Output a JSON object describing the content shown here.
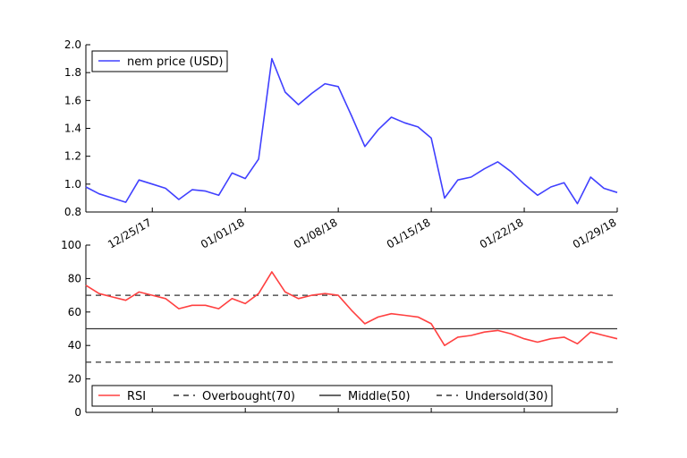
{
  "chart_data": [
    {
      "type": "line",
      "title": "",
      "xlabel": "",
      "ylabel": "",
      "ylim": [
        0.8,
        2.0
      ],
      "yticks": [
        "0.8",
        "1.0",
        "1.2",
        "1.4",
        "1.6",
        "1.8",
        "2.0"
      ],
      "xtick_labels": [
        "12/25/17",
        "01/01/18",
        "01/08/18",
        "01/15/18",
        "01/22/18",
        "01/29/18"
      ],
      "x": [
        "12/20/17",
        "12/21/17",
        "12/22/17",
        "12/23/17",
        "12/24/17",
        "12/25/17",
        "12/26/17",
        "12/27/17",
        "12/28/17",
        "12/29/17",
        "12/30/17",
        "12/31/17",
        "01/01/18",
        "01/02/18",
        "01/03/18",
        "01/04/18",
        "01/05/18",
        "01/06/18",
        "01/07/18",
        "01/08/18",
        "01/09/18",
        "01/10/18",
        "01/11/18",
        "01/12/18",
        "01/13/18",
        "01/14/18",
        "01/15/18",
        "01/16/18",
        "01/17/18",
        "01/18/18",
        "01/19/18",
        "01/20/18",
        "01/21/18",
        "01/22/18",
        "01/23/18",
        "01/24/18",
        "01/25/18",
        "01/26/18",
        "01/27/18",
        "01/28/18",
        "01/29/18"
      ],
      "series": [
        {
          "name": "nem price (USD)",
          "color": "#4040ff",
          "values": [
            0.98,
            0.93,
            0.9,
            0.87,
            1.03,
            1.0,
            0.97,
            0.89,
            0.96,
            0.95,
            0.92,
            1.08,
            1.04,
            1.18,
            1.9,
            1.66,
            1.57,
            1.65,
            1.72,
            1.7,
            1.49,
            1.27,
            1.39,
            1.48,
            1.44,
            1.41,
            1.33,
            0.9,
            1.03,
            1.05,
            1.11,
            1.16,
            1.09,
            1.0,
            0.92,
            0.98,
            1.01,
            0.86,
            1.05,
            0.97,
            0.94
          ]
        }
      ],
      "legend": "top-left",
      "grid": false
    },
    {
      "type": "line",
      "title": "",
      "xlabel": "",
      "ylabel": "",
      "ylim": [
        0,
        100
      ],
      "yticks": [
        "0",
        "20",
        "40",
        "60",
        "80",
        "100"
      ],
      "series": [
        {
          "name": "RSI",
          "color": "#ff4040",
          "style": "solid",
          "values": [
            76,
            71,
            69,
            67,
            72,
            70,
            68,
            62,
            64,
            64,
            62,
            68,
            65,
            71,
            84,
            72,
            68,
            70,
            71,
            70,
            61,
            53,
            57,
            59,
            58,
            57,
            53,
            40,
            45,
            46,
            48,
            49,
            47,
            44,
            42,
            44,
            45,
            41,
            48,
            46,
            44
          ]
        },
        {
          "name": "Overbought(70)",
          "color": "#333333",
          "style": "dashed",
          "values": [
            70
          ]
        },
        {
          "name": "Middle(50)",
          "color": "#333333",
          "style": "solid",
          "values": [
            50
          ]
        },
        {
          "name": "Undersold(30)",
          "color": "#333333",
          "style": "dashed",
          "values": [
            30
          ]
        }
      ],
      "legend": "bottom",
      "grid": false
    }
  ]
}
